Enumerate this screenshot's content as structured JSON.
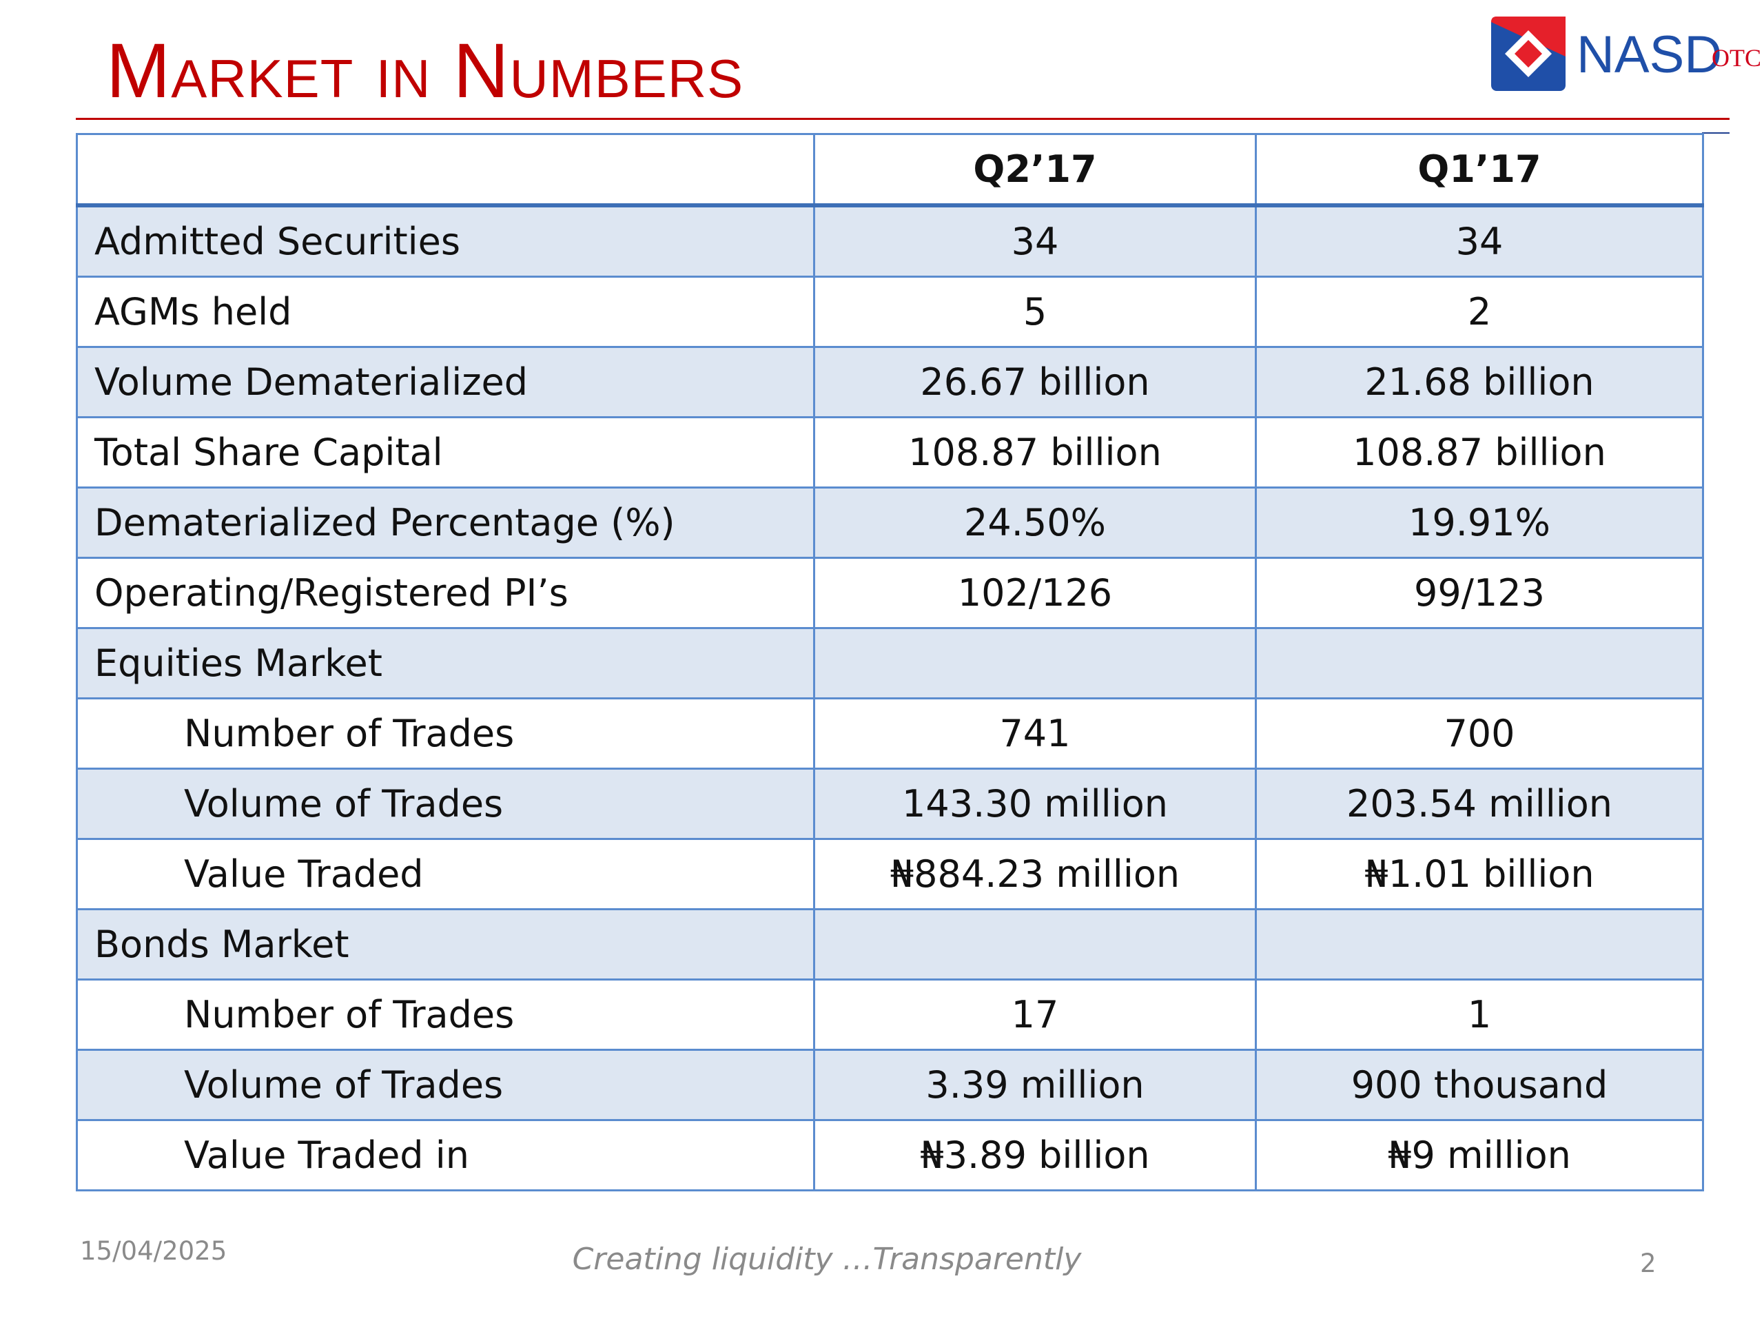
{
  "slide": {
    "title": "Market in Numbers",
    "logo": {
      "text": "NASD",
      "subtext": "OTC",
      "icon": "nasd-diamond-logo-icon",
      "colors": {
        "red": "#e5202a",
        "blue": "#1f4fa8"
      }
    },
    "accent_color": "#c00000"
  },
  "table": {
    "columns": [
      "",
      "Q2’17",
      "Q1’17"
    ],
    "rows": [
      {
        "label": "Admitted Securities",
        "indent": false,
        "q2_17": "34",
        "q1_17": "34"
      },
      {
        "label": "AGMs held",
        "indent": false,
        "q2_17": "5",
        "q1_17": "2"
      },
      {
        "label": "Volume Dematerialized",
        "indent": false,
        "q2_17": "26.67 billion",
        "q1_17": "21.68 billion"
      },
      {
        "label": "Total Share Capital",
        "indent": false,
        "q2_17": "108.87 billion",
        "q1_17": "108.87 billion"
      },
      {
        "label": "Dematerialized Percentage (%)",
        "indent": false,
        "q2_17": "24.50%",
        "q1_17": "19.91%"
      },
      {
        "label": "Operating/Registered PI’s",
        "indent": false,
        "q2_17": "102/126",
        "q1_17": "99/123"
      },
      {
        "label": "Equities Market",
        "indent": false,
        "q2_17": "",
        "q1_17": ""
      },
      {
        "label": "Number of Trades",
        "indent": true,
        "q2_17": "741",
        "q1_17": "700"
      },
      {
        "label": "Volume of Trades",
        "indent": true,
        "q2_17": "143.30 million",
        "q1_17": "203.54 million"
      },
      {
        "label": "Value Traded",
        "indent": true,
        "q2_17": "₦884.23 million",
        "q1_17": "₦1.01 billion"
      },
      {
        "label": "Bonds Market",
        "indent": false,
        "q2_17": "",
        "q1_17": ""
      },
      {
        "label": "Number of Trades",
        "indent": true,
        "q2_17": "17",
        "q1_17": "1"
      },
      {
        "label": "Volume of Trades",
        "indent": true,
        "q2_17": "3.39 million",
        "q1_17": "900 thousand"
      },
      {
        "label": "Value Traded in",
        "indent": true,
        "q2_17": "₦3.89 billion",
        "q1_17": "₦9 million"
      }
    ]
  },
  "footer": {
    "date": "15/04/2025",
    "tagline": "Creating liquidity …Transparently",
    "page_number": "2"
  }
}
